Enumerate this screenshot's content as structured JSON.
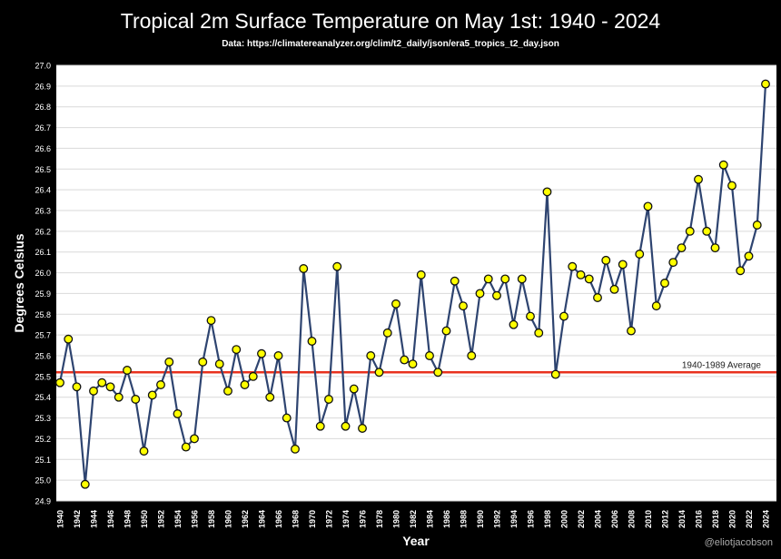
{
  "chart_data": {
    "type": "line",
    "title": "Tropical 2m Surface Temperature on May 1st: 1940 - 2024",
    "subtitle": "Data: https://climatereanalyzer.org/clim/t2_daily/json/era5_tropics_t2_day.json",
    "xlabel": "Year",
    "ylabel": "Degrees Celsius",
    "ylim": [
      24.9,
      27.0
    ],
    "yticks": [
      "24.9",
      "25.0",
      "25.1",
      "25.2",
      "25.3",
      "25.4",
      "25.5",
      "25.6",
      "25.7",
      "25.8",
      "25.9",
      "26.0",
      "26.1",
      "26.2",
      "26.3",
      "26.4",
      "26.5",
      "26.6",
      "26.7",
      "26.8",
      "26.9",
      "27.0"
    ],
    "grid": true,
    "x": [
      1940,
      1941,
      1942,
      1943,
      1944,
      1945,
      1946,
      1947,
      1948,
      1949,
      1950,
      1951,
      1952,
      1953,
      1954,
      1955,
      1956,
      1957,
      1958,
      1959,
      1960,
      1961,
      1962,
      1963,
      1964,
      1965,
      1966,
      1967,
      1968,
      1969,
      1970,
      1971,
      1972,
      1973,
      1974,
      1975,
      1976,
      1977,
      1978,
      1979,
      1980,
      1981,
      1982,
      1983,
      1984,
      1985,
      1986,
      1987,
      1988,
      1989,
      1990,
      1991,
      1992,
      1993,
      1994,
      1995,
      1996,
      1997,
      1998,
      1999,
      2000,
      2001,
      2002,
      2003,
      2004,
      2005,
      2006,
      2007,
      2008,
      2009,
      2010,
      2011,
      2012,
      2013,
      2014,
      2015,
      2016,
      2017,
      2018,
      2019,
      2020,
      2021,
      2022,
      2023,
      2024
    ],
    "values": [
      25.47,
      25.68,
      25.45,
      24.98,
      25.43,
      25.47,
      25.45,
      25.4,
      25.53,
      25.39,
      25.14,
      25.41,
      25.46,
      25.57,
      25.32,
      25.16,
      25.2,
      25.57,
      25.77,
      25.56,
      25.43,
      25.63,
      25.46,
      25.5,
      25.61,
      25.4,
      25.6,
      25.3,
      25.15,
      26.02,
      25.67,
      25.26,
      25.39,
      26.03,
      25.26,
      25.44,
      25.25,
      25.6,
      25.52,
      25.71,
      25.85,
      25.58,
      25.56,
      25.99,
      25.6,
      25.52,
      25.72,
      25.96,
      25.84,
      25.6,
      25.9,
      25.97,
      25.89,
      25.97,
      25.75,
      25.97,
      25.79,
      25.71,
      26.39,
      25.51,
      25.79,
      26.03,
      25.99,
      25.97,
      25.88,
      26.06,
      25.92,
      26.04,
      25.72,
      26.09,
      26.32,
      25.84,
      25.95,
      26.05,
      26.12,
      26.2,
      26.45,
      26.2,
      26.12,
      26.52,
      26.42,
      26.01,
      26.08,
      26.23,
      26.91
    ],
    "reference_line": {
      "label": "1940-1989 Average",
      "value": 25.52,
      "color": "#e8321e"
    },
    "line_color": "#2e4470",
    "marker_color": "#ffff00",
    "credit": "@eliotjacobson"
  }
}
